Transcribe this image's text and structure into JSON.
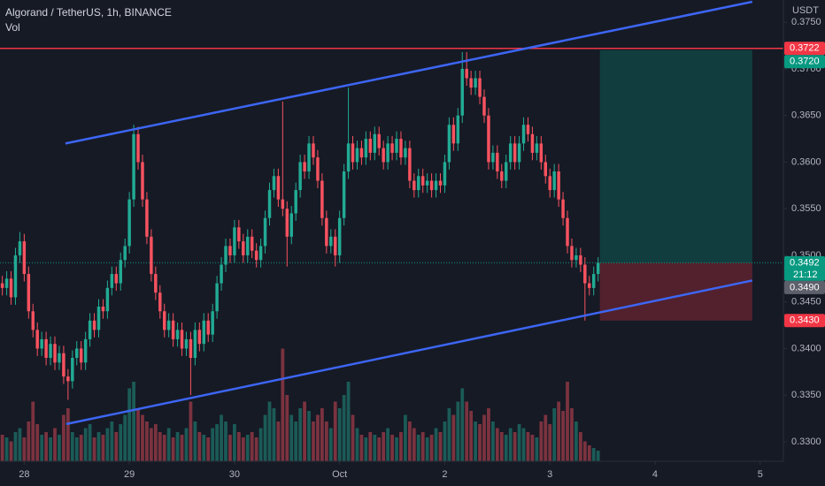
{
  "chart_data": {
    "type": "candlestick",
    "title": "Algorand / TetherUS, 1h, BINANCE",
    "subtitle": "Vol",
    "y_axis_label": "USDT",
    "up_color": "#22ab94",
    "down_color": "#f7525f",
    "grid": false,
    "xlim": [
      -0.53,
      178.3
    ],
    "xticks": [
      {
        "value": 5,
        "label": "28"
      },
      {
        "value": 29,
        "label": "29"
      },
      {
        "value": 53,
        "label": "30"
      },
      {
        "value": 77,
        "label": "Oct"
      },
      {
        "value": 101,
        "label": "2"
      },
      {
        "value": 125,
        "label": "3"
      },
      {
        "value": 149,
        "label": "4"
      },
      {
        "value": 173,
        "label": "5"
      }
    ],
    "ylim": [
      0.32791,
      0.37739
    ],
    "yticks": [
      {
        "value": 0.33,
        "label": "0.3300"
      },
      {
        "value": 0.335,
        "label": "0.3350"
      },
      {
        "value": 0.34,
        "label": "0.3400"
      },
      {
        "value": 0.345,
        "label": "0.3450"
      },
      {
        "value": 0.35,
        "label": "0.3500"
      },
      {
        "value": 0.355,
        "label": "0.3550"
      },
      {
        "value": 0.36,
        "label": "0.3600"
      },
      {
        "value": 0.365,
        "label": "0.3650"
      },
      {
        "value": 0.37,
        "label": "0.3700"
      },
      {
        "value": 0.375,
        "label": "0.3750"
      }
    ],
    "candles": [
      [
        0.347,
        0.3478,
        0.3457,
        0.3465
      ],
      [
        0.3465,
        0.3483,
        0.3457,
        0.3475
      ],
      [
        0.3475,
        0.3483,
        0.3447,
        0.3455
      ],
      [
        0.3455,
        0.3508,
        0.3447,
        0.35
      ],
      [
        0.35,
        0.3525,
        0.3492,
        0.3515
      ],
      [
        0.3515,
        0.3523,
        0.3472,
        0.348
      ],
      [
        0.348,
        0.3488,
        0.3432,
        0.344
      ],
      [
        0.344,
        0.3448,
        0.3412,
        0.342
      ],
      [
        0.342,
        0.3428,
        0.3392,
        0.34
      ],
      [
        0.34,
        0.3418,
        0.3392,
        0.341
      ],
      [
        0.341,
        0.3418,
        0.3382,
        0.339
      ],
      [
        0.339,
        0.3413,
        0.3382,
        0.3405
      ],
      [
        0.3405,
        0.3413,
        0.3377,
        0.3385
      ],
      [
        0.3385,
        0.3403,
        0.3377,
        0.3395
      ],
      [
        0.3395,
        0.3403,
        0.3362,
        0.337
      ],
      [
        0.337,
        0.3378,
        0.3345,
        0.3365
      ],
      [
        0.3365,
        0.3398,
        0.3357,
        0.339
      ],
      [
        0.339,
        0.3408,
        0.3382,
        0.34
      ],
      [
        0.34,
        0.3408,
        0.3377,
        0.3385
      ],
      [
        0.3385,
        0.3418,
        0.3377,
        0.341
      ],
      [
        0.341,
        0.3438,
        0.3402,
        0.343
      ],
      [
        0.343,
        0.3438,
        0.3412,
        0.342
      ],
      [
        0.342,
        0.3453,
        0.3412,
        0.3445
      ],
      [
        0.3445,
        0.3453,
        0.3432,
        0.344
      ],
      [
        0.344,
        0.3473,
        0.3432,
        0.3465
      ],
      [
        0.3465,
        0.3488,
        0.3457,
        0.348
      ],
      [
        0.348,
        0.3488,
        0.3462,
        0.347
      ],
      [
        0.347,
        0.3503,
        0.3462,
        0.3495
      ],
      [
        0.3495,
        0.3518,
        0.3487,
        0.351
      ],
      [
        0.351,
        0.3568,
        0.3502,
        0.356
      ],
      [
        0.356,
        0.364,
        0.3552,
        0.363
      ],
      [
        0.363,
        0.3638,
        0.3592,
        0.36
      ],
      [
        0.36,
        0.3608,
        0.3552,
        0.356
      ],
      [
        0.356,
        0.3568,
        0.3512,
        0.352
      ],
      [
        0.352,
        0.3528,
        0.3472,
        0.348
      ],
      [
        0.348,
        0.3488,
        0.3452,
        0.346
      ],
      [
        0.346,
        0.3468,
        0.3432,
        0.344
      ],
      [
        0.344,
        0.3448,
        0.3412,
        0.342
      ],
      [
        0.342,
        0.3438,
        0.3412,
        0.343
      ],
      [
        0.343,
        0.3438,
        0.3402,
        0.341
      ],
      [
        0.341,
        0.3428,
        0.3402,
        0.342
      ],
      [
        0.342,
        0.3428,
        0.3392,
        0.34
      ],
      [
        0.34,
        0.3418,
        0.3392,
        0.341
      ],
      [
        0.341,
        0.3418,
        0.335,
        0.339
      ],
      [
        0.339,
        0.3428,
        0.3382,
        0.342
      ],
      [
        0.342,
        0.3428,
        0.3397,
        0.3405
      ],
      [
        0.3405,
        0.3438,
        0.3397,
        0.343
      ],
      [
        0.343,
        0.3438,
        0.3407,
        0.3415
      ],
      [
        0.3415,
        0.3448,
        0.3407,
        0.344
      ],
      [
        0.344,
        0.3478,
        0.3432,
        0.347
      ],
      [
        0.347,
        0.3498,
        0.3462,
        0.349
      ],
      [
        0.349,
        0.3518,
        0.3482,
        0.351
      ],
      [
        0.351,
        0.3518,
        0.3492,
        0.35
      ],
      [
        0.35,
        0.3538,
        0.3492,
        0.353
      ],
      [
        0.353,
        0.3538,
        0.3507,
        0.3515
      ],
      [
        0.3515,
        0.3523,
        0.3492,
        0.35
      ],
      [
        0.35,
        0.3528,
        0.3492,
        0.352
      ],
      [
        0.352,
        0.3528,
        0.3497,
        0.3505
      ],
      [
        0.3505,
        0.3513,
        0.3487,
        0.3495
      ],
      [
        0.3495,
        0.3518,
        0.3487,
        0.351
      ],
      [
        0.351,
        0.3548,
        0.3502,
        0.354
      ],
      [
        0.354,
        0.3578,
        0.3532,
        0.357
      ],
      [
        0.357,
        0.3593,
        0.3562,
        0.3585
      ],
      [
        0.3585,
        0.3593,
        0.3552,
        0.356
      ],
      [
        0.356,
        0.3665,
        0.3542,
        0.355
      ],
      [
        0.355,
        0.3558,
        0.3488,
        0.352
      ],
      [
        0.352,
        0.3553,
        0.3512,
        0.3545
      ],
      [
        0.3545,
        0.3578,
        0.3537,
        0.357
      ],
      [
        0.357,
        0.3608,
        0.3562,
        0.36
      ],
      [
        0.36,
        0.3608,
        0.3582,
        0.359
      ],
      [
        0.359,
        0.3628,
        0.3582,
        0.362
      ],
      [
        0.362,
        0.3628,
        0.3597,
        0.3605
      ],
      [
        0.3605,
        0.3613,
        0.3572,
        0.358
      ],
      [
        0.358,
        0.3588,
        0.3532,
        0.354
      ],
      [
        0.354,
        0.3548,
        0.3502,
        0.351
      ],
      [
        0.351,
        0.3528,
        0.3502,
        0.352
      ],
      [
        0.352,
        0.3528,
        0.3488,
        0.35
      ],
      [
        0.35,
        0.3548,
        0.3492,
        0.354
      ],
      [
        0.354,
        0.3598,
        0.3532,
        0.359
      ],
      [
        0.359,
        0.368,
        0.3582,
        0.362
      ],
      [
        0.362,
        0.3628,
        0.3592,
        0.36
      ],
      [
        0.36,
        0.3623,
        0.3592,
        0.3615
      ],
      [
        0.3615,
        0.3623,
        0.3597,
        0.3605
      ],
      [
        0.3605,
        0.3633,
        0.3597,
        0.3625
      ],
      [
        0.3625,
        0.3633,
        0.3602,
        0.361
      ],
      [
        0.361,
        0.3638,
        0.3602,
        0.363
      ],
      [
        0.363,
        0.3638,
        0.3607,
        0.3615
      ],
      [
        0.3615,
        0.3623,
        0.3592,
        0.36
      ],
      [
        0.36,
        0.3628,
        0.3592,
        0.362
      ],
      [
        0.362,
        0.3628,
        0.3602,
        0.361
      ],
      [
        0.361,
        0.3633,
        0.3602,
        0.3625
      ],
      [
        0.3625,
        0.3633,
        0.3597,
        0.3605
      ],
      [
        0.3605,
        0.3623,
        0.3597,
        0.3615
      ],
      [
        0.3615,
        0.3623,
        0.3572,
        0.358
      ],
      [
        0.358,
        0.3588,
        0.3562,
        0.357
      ],
      [
        0.357,
        0.3593,
        0.3562,
        0.3585
      ],
      [
        0.3585,
        0.3593,
        0.3567,
        0.3575
      ],
      [
        0.3575,
        0.3588,
        0.3567,
        0.358
      ],
      [
        0.358,
        0.3588,
        0.3562,
        0.357
      ],
      [
        0.357,
        0.3588,
        0.3562,
        0.358
      ],
      [
        0.358,
        0.3588,
        0.3567,
        0.3575
      ],
      [
        0.3575,
        0.3608,
        0.3567,
        0.36
      ],
      [
        0.36,
        0.3648,
        0.3592,
        0.364
      ],
      [
        0.364,
        0.3648,
        0.3612,
        0.362
      ],
      [
        0.362,
        0.3658,
        0.3612,
        0.365
      ],
      [
        0.365,
        0.3718,
        0.3642,
        0.37
      ],
      [
        0.37,
        0.3718,
        0.3682,
        0.369
      ],
      [
        0.369,
        0.3698,
        0.3672,
        0.368
      ],
      [
        0.368,
        0.3698,
        0.3672,
        0.369
      ],
      [
        0.369,
        0.3698,
        0.3662,
        0.367
      ],
      [
        0.367,
        0.3678,
        0.3642,
        0.365
      ],
      [
        0.365,
        0.3658,
        0.3592,
        0.36
      ],
      [
        0.36,
        0.3618,
        0.3592,
        0.361
      ],
      [
        0.361,
        0.3618,
        0.3582,
        0.359
      ],
      [
        0.359,
        0.3598,
        0.3572,
        0.358
      ],
      [
        0.358,
        0.3608,
        0.3572,
        0.36
      ],
      [
        0.36,
        0.3628,
        0.3592,
        0.362
      ],
      [
        0.362,
        0.3628,
        0.3592,
        0.36
      ],
      [
        0.36,
        0.3628,
        0.3592,
        0.362
      ],
      [
        0.362,
        0.3648,
        0.3612,
        0.364
      ],
      [
        0.364,
        0.3648,
        0.3622,
        0.363
      ],
      [
        0.363,
        0.3638,
        0.3602,
        0.361
      ],
      [
        0.361,
        0.3628,
        0.3602,
        0.362
      ],
      [
        0.362,
        0.3628,
        0.3592,
        0.36
      ],
      [
        0.36,
        0.3608,
        0.3577,
        0.3585
      ],
      [
        0.3585,
        0.3593,
        0.3562,
        0.357
      ],
      [
        0.357,
        0.3598,
        0.3562,
        0.359
      ],
      [
        0.359,
        0.3598,
        0.3552,
        0.356
      ],
      [
        0.356,
        0.3568,
        0.3532,
        0.354
      ],
      [
        0.354,
        0.3548,
        0.3502,
        0.351
      ],
      [
        0.351,
        0.3518,
        0.3487,
        0.3495
      ],
      [
        0.3495,
        0.3508,
        0.3487,
        0.35
      ],
      [
        0.35,
        0.3508,
        0.3482,
        0.349
      ],
      [
        0.349,
        0.3498,
        0.343,
        0.347
      ],
      [
        0.347,
        0.3478,
        0.3457,
        0.3465
      ],
      [
        0.3465,
        0.3488,
        0.3457,
        0.348
      ],
      [
        0.348,
        0.3498,
        0.3472,
        0.3492
      ]
    ],
    "vlim": [
      0,
      100
    ],
    "volume": [
      20,
      18,
      15,
      22,
      25,
      18,
      30,
      45,
      28,
      20,
      22,
      18,
      25,
      20,
      35,
      40,
      22,
      18,
      20,
      25,
      28,
      18,
      22,
      20,
      25,
      30,
      22,
      28,
      35,
      55,
      60,
      40,
      35,
      30,
      25,
      28,
      22,
      20,
      25,
      18,
      22,
      20,
      25,
      45,
      30,
      22,
      20,
      18,
      25,
      28,
      35,
      30,
      20,
      28,
      22,
      18,
      20,
      22,
      18,
      25,
      35,
      45,
      40,
      30,
      85,
      50,
      35,
      30,
      40,
      45,
      38,
      30,
      35,
      40,
      30,
      25,
      45,
      40,
      50,
      60,
      35,
      25,
      20,
      18,
      22,
      20,
      18,
      22,
      25,
      20,
      18,
      22,
      35,
      30,
      25,
      20,
      22,
      18,
      20,
      25,
      22,
      30,
      40,
      35,
      45,
      55,
      45,
      38,
      30,
      28,
      35,
      40,
      30,
      25,
      22,
      20,
      25,
      22,
      28,
      25,
      22,
      20,
      18,
      30,
      35,
      28,
      40,
      45,
      38,
      60,
      40,
      30,
      22,
      15,
      12,
      10,
      8
    ],
    "trendline_color": "#3d66f5",
    "trendlines": [
      {
        "x": [
          14.4,
          171.2
        ],
        "y": [
          0.362,
          0.3772
        ]
      },
      {
        "x": [
          14.6,
          171.2
        ],
        "y": [
          0.3319,
          0.3473
        ]
      }
    ],
    "hline": {
      "value": 0.3722,
      "color": "#f23645"
    },
    "position": {
      "start": 136.4,
      "end": 171.2,
      "target": 0.372,
      "entry": 0.3492,
      "stop": 0.343
    },
    "current_price": 0.3492,
    "markers": [
      {
        "value": 0.3722,
        "label": "0.3722",
        "color": "#f23645"
      },
      {
        "value": 0.372,
        "label": "0.3720",
        "color": "#089981"
      },
      {
        "value": 0.3492,
        "label": "0.3492",
        "color": "#089981",
        "countdown": "21:12"
      },
      {
        "value": 0.349,
        "label": "0.3490",
        "color": "#5d606b"
      },
      {
        "value": 0.343,
        "label": "0.3430",
        "color": "#f23645"
      }
    ]
  }
}
